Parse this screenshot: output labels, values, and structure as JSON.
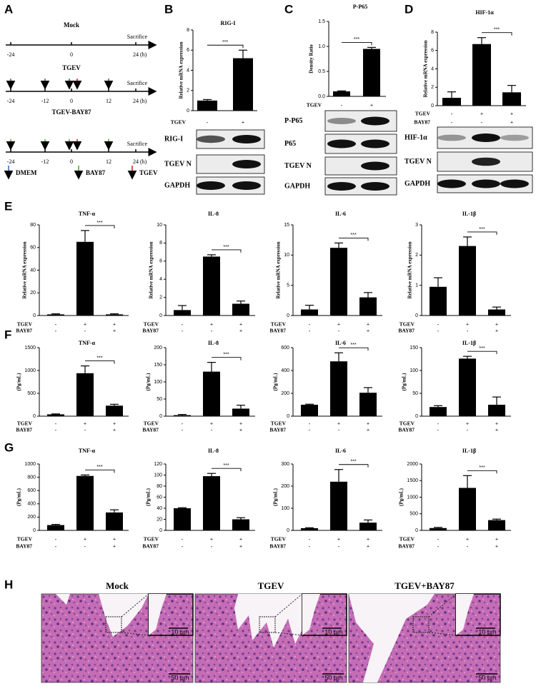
{
  "panel_labels": [
    "A",
    "B",
    "C",
    "D",
    "E",
    "F",
    "G",
    "H"
  ],
  "timeline": {
    "groups": [
      {
        "name": "Mock",
        "ticks": [
          "-24",
          "0",
          "24 (h)"
        ],
        "end_label": "Sacrifice"
      },
      {
        "name": "TGEV",
        "ticks": [
          "-24",
          "-12",
          "0",
          "12",
          "24 (h)"
        ],
        "end_label": "Sacrifice"
      },
      {
        "name": "TGEV-BAY87",
        "ticks": [
          "-24",
          "-12",
          "0",
          "12",
          "24 (h)"
        ],
        "end_label": "Sacrifice"
      }
    ],
    "legend": [
      "DMEM",
      "BAY87",
      "TGEV"
    ]
  },
  "blots": [
    {
      "rows": [
        "RIG-I",
        "TGEV N",
        "GAPDH"
      ]
    },
    {
      "rows": [
        "P-P65",
        "P65",
        "TGEV N",
        "GAPDH"
      ]
    },
    {
      "rows": [
        "HIF-1α",
        "TGEV N",
        "GAPDH"
      ]
    }
  ],
  "histology": [
    {
      "title": "Mock",
      "inset_scale": "10 μm",
      "scale": "50 μm"
    },
    {
      "title": "TGEV",
      "inset_scale": "10 μm",
      "scale": "50 μm"
    },
    {
      "title": "TGEV+BAY87",
      "inset_scale": "10 μm",
      "scale": "50 μm"
    }
  ],
  "chart_data": [
    {
      "type": "bar",
      "title": "RIG-I",
      "ylabel": "Relative mRNA expression",
      "color": "#000000",
      "categories": [
        null,
        null
      ],
      "conditions": [
        {
          "name": "TGEV",
          "signs": [
            "-",
            "+"
          ]
        }
      ],
      "values": [
        1.0,
        5.2
      ],
      "errors": [
        0.1,
        0.8
      ],
      "significance": "***",
      "ylim": [
        0,
        8
      ],
      "yticks": [
        0,
        2,
        4,
        6,
        8
      ]
    },
    {
      "type": "bar",
      "title": "P-P65",
      "ylabel": "Density Ratio",
      "color": "#000000",
      "categories": [
        null,
        null
      ],
      "conditions": [
        {
          "name": "TGEV",
          "signs": [
            "-",
            "+"
          ]
        }
      ],
      "values": [
        0.1,
        0.95
      ],
      "errors": [
        0.01,
        0.03
      ],
      "significance": "***",
      "ylim": [
        0,
        1.5
      ],
      "yticks": [
        {
          "value": 0,
          "label": "0.0"
        },
        0.5,
        {
          "value": 1,
          "label": "1.0"
        },
        1.5
      ]
    },
    {
      "type": "bar",
      "title": "HIF-1α",
      "ylabel": "Relative mRNA expression",
      "color": "#000000",
      "categories": [
        null,
        null,
        null
      ],
      "conditions": [
        {
          "name": "TGEV",
          "signs": [
            "-",
            "+",
            "+"
          ]
        },
        {
          "name": "BAY87",
          "signs": [
            "-",
            "-",
            "+"
          ]
        }
      ],
      "values": [
        0.85,
        6.7,
        1.45
      ],
      "errors": [
        0.65,
        0.7,
        0.75
      ],
      "significance": "***",
      "ylim": [
        0,
        8
      ],
      "yticks": [
        0,
        2,
        4,
        6,
        8
      ]
    },
    {
      "type": "bar",
      "title": "TNF-α",
      "ylabel": "Relative mRNA expression",
      "color": "#000000",
      "categories": [
        null,
        null,
        null
      ],
      "conditions": [
        {
          "name": "TGEV",
          "signs": [
            "-",
            "+",
            "+"
          ]
        },
        {
          "name": "BAY87",
          "signs": [
            "-",
            "-",
            "+"
          ]
        }
      ],
      "values": [
        1,
        65,
        1
      ],
      "errors": [
        0.5,
        10,
        0.5
      ],
      "significance": "***",
      "ylim": [
        0,
        80
      ],
      "yticks": [
        0,
        20,
        40,
        60,
        80
      ]
    },
    {
      "type": "bar",
      "title": "IL-8",
      "ylabel": "Relative mRNA expression",
      "color": "#000000",
      "categories": [
        null,
        null,
        null
      ],
      "conditions": [
        {
          "name": "TGEV",
          "signs": [
            "-",
            "+",
            "+"
          ]
        },
        {
          "name": "BAY87",
          "signs": [
            "-",
            "-",
            "+"
          ]
        }
      ],
      "values": [
        0.6,
        6.5,
        1.3
      ],
      "errors": [
        0.5,
        0.2,
        0.3
      ],
      "significance": "***",
      "ylim": [
        0,
        10
      ],
      "yticks": [
        0,
        2,
        4,
        6,
        8,
        10
      ]
    },
    {
      "type": "bar",
      "title": "IL-6",
      "ylabel": "Relative mRNA expression",
      "color": "#000000",
      "categories": [
        null,
        null,
        null
      ],
      "conditions": [
        {
          "name": "TGEV",
          "signs": [
            "-",
            "+",
            "+"
          ]
        },
        {
          "name": "BAY87",
          "signs": [
            "-",
            "-",
            "+"
          ]
        }
      ],
      "values": [
        1,
        11.2,
        3
      ],
      "errors": [
        0.7,
        0.8,
        0.8
      ],
      "significance": "***",
      "ylim": [
        0,
        15
      ],
      "yticks": [
        0,
        5,
        10,
        15
      ]
    },
    {
      "type": "bar",
      "title": "IL-1β",
      "ylabel": "Relative mRNA expression",
      "color": "#000000",
      "categories": [
        null,
        null,
        null
      ],
      "conditions": [
        {
          "name": "TGEV",
          "signs": [
            "-",
            "+",
            "+"
          ]
        },
        {
          "name": "BAY87",
          "signs": [
            "-",
            "-",
            "+"
          ]
        }
      ],
      "values": [
        0.95,
        2.3,
        0.2
      ],
      "errors": [
        0.3,
        0.3,
        0.08
      ],
      "significance": "***",
      "ylim": [
        0,
        3
      ],
      "yticks": [
        0,
        1,
        2,
        3
      ]
    },
    {
      "type": "bar",
      "title": "TNF-α",
      "ylabel": "(Pg/mL)",
      "color": "#000000",
      "categories": [
        null,
        null,
        null
      ],
      "conditions": [
        {
          "name": "TGEV",
          "signs": [
            "-",
            "+",
            "+"
          ]
        },
        {
          "name": "BAY87",
          "signs": [
            "-",
            "-",
            "+"
          ]
        }
      ],
      "values": [
        40,
        940,
        230
      ],
      "errors": [
        10,
        160,
        30
      ],
      "significance": "***",
      "ylim": [
        0,
        1500
      ],
      "yticks": [
        0,
        500,
        1000,
        1500
      ]
    },
    {
      "type": "bar",
      "title": "IL-8",
      "ylabel": "(Pg/mL)",
      "color": "#000000",
      "categories": [
        null,
        null,
        null
      ],
      "conditions": [
        {
          "name": "TGEV",
          "signs": [
            "-",
            "+",
            "+"
          ]
        },
        {
          "name": "BAY87",
          "signs": [
            "-",
            "-",
            "+"
          ]
        }
      ],
      "values": [
        3,
        130,
        22
      ],
      "errors": [
        2,
        27,
        10
      ],
      "significance": "***",
      "ylim": [
        0,
        200
      ],
      "yticks": [
        0,
        50,
        100,
        150,
        200
      ]
    },
    {
      "type": "bar",
      "title": "IL-6",
      "ylabel": "(Pg/mL)",
      "color": "#000000",
      "categories": [
        null,
        null,
        null
      ],
      "conditions": [
        {
          "name": "TGEV",
          "signs": [
            "-",
            "+",
            "+"
          ]
        },
        {
          "name": "BAY87",
          "signs": [
            "-",
            "-",
            "+"
          ]
        }
      ],
      "values": [
        100,
        480,
        205
      ],
      "errors": [
        5,
        75,
        45
      ],
      "significance": "***",
      "ylim": [
        0,
        600
      ],
      "yticks": [
        0,
        200,
        400,
        600
      ]
    },
    {
      "type": "bar",
      "title": "IL-1β",
      "ylabel": "(Pg/mL)",
      "color": "#000000",
      "categories": [
        null,
        null,
        null
      ],
      "conditions": [
        {
          "name": "TGEV",
          "signs": [
            "-",
            "+",
            "+"
          ]
        },
        {
          "name": "BAY87",
          "signs": [
            "-",
            "-",
            "+"
          ]
        }
      ],
      "values": [
        20,
        126,
        25
      ],
      "errors": [
        3,
        5,
        17
      ],
      "significance": "***",
      "ylim": [
        0,
        150
      ],
      "yticks": [
        0,
        50,
        100,
        150
      ]
    },
    {
      "type": "bar",
      "title": "TNF-α",
      "ylabel": "(Pg/mL)",
      "color": "#000000",
      "categories": [
        null,
        null,
        null
      ],
      "conditions": [
        {
          "name": "TGEV",
          "signs": [
            "-",
            "+",
            "+"
          ]
        },
        {
          "name": "BAY87",
          "signs": [
            "-",
            "-",
            "+"
          ]
        }
      ],
      "values": [
        80,
        820,
        270
      ],
      "errors": [
        10,
        15,
        40
      ],
      "significance": "***",
      "ylim": [
        0,
        1000
      ],
      "yticks": [
        0,
        200,
        400,
        600,
        800,
        1000
      ]
    },
    {
      "type": "bar",
      "title": "IL-8",
      "ylabel": "(Pg/mL)",
      "color": "#000000",
      "categories": [
        null,
        null,
        null
      ],
      "conditions": [
        {
          "name": "TGEV",
          "signs": [
            "-",
            "+",
            "+"
          ]
        },
        {
          "name": "BAY87",
          "signs": [
            "-",
            "-",
            "+"
          ]
        }
      ],
      "values": [
        40,
        98,
        20
      ],
      "errors": [
        1,
        5,
        3
      ],
      "significance": "***",
      "ylim": [
        0,
        120
      ],
      "yticks": [
        0,
        20,
        40,
        60,
        80,
        100,
        120
      ]
    },
    {
      "type": "bar",
      "title": "IL-6",
      "ylabel": "(Pg/mL)",
      "color": "#000000",
      "categories": [
        null,
        null,
        null
      ],
      "conditions": [
        {
          "name": "TGEV",
          "signs": [
            "-",
            "+",
            "+"
          ]
        },
        {
          "name": "BAY87",
          "signs": [
            "-",
            "-",
            "+"
          ]
        }
      ],
      "values": [
        10,
        220,
        35
      ],
      "errors": [
        2,
        55,
        12
      ],
      "significance": "***",
      "ylim": [
        0,
        300
      ],
      "yticks": [
        0,
        100,
        200,
        300
      ]
    },
    {
      "type": "bar",
      "title": "IL-1β",
      "ylabel": "(Pg/mL)",
      "color": "#000000",
      "categories": [
        null,
        null,
        null
      ],
      "conditions": [
        {
          "name": "TGEV",
          "signs": [
            "-",
            "+",
            "+"
          ]
        },
        {
          "name": "BAY87",
          "signs": [
            "-",
            "-",
            "+"
          ]
        }
      ],
      "values": [
        70,
        1280,
        310
      ],
      "errors": [
        20,
        370,
        30
      ],
      "significance": "***",
      "ylim": [
        0,
        2000
      ],
      "yticks": [
        0,
        500,
        1000,
        1500,
        2000
      ]
    }
  ]
}
